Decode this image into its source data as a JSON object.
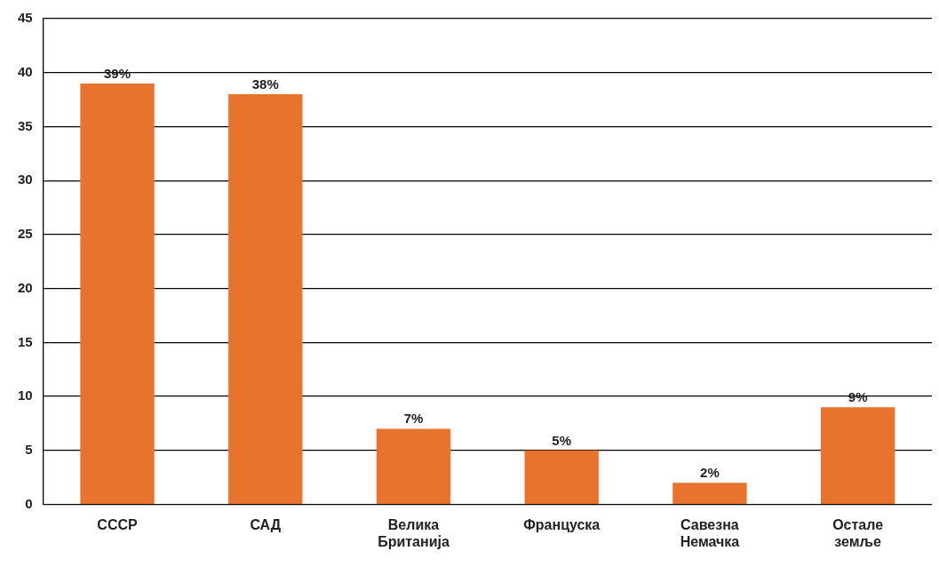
{
  "chart_data": {
    "type": "bar",
    "categories": [
      "СССР",
      "САД",
      "Велика Британија",
      "Француска",
      "Савезна Немачка",
      "Остале земље"
    ],
    "values": [
      39,
      38,
      7,
      5,
      2,
      9
    ],
    "value_labels": [
      "39%",
      "38%",
      "7%",
      "5%",
      "2%",
      "9%"
    ],
    "color": "#e8732f",
    "ylim": [
      0,
      45
    ],
    "yticks": [
      0,
      5,
      10,
      15,
      20,
      25,
      30,
      35,
      40,
      45
    ],
    "grid": "y",
    "legend": false
  }
}
